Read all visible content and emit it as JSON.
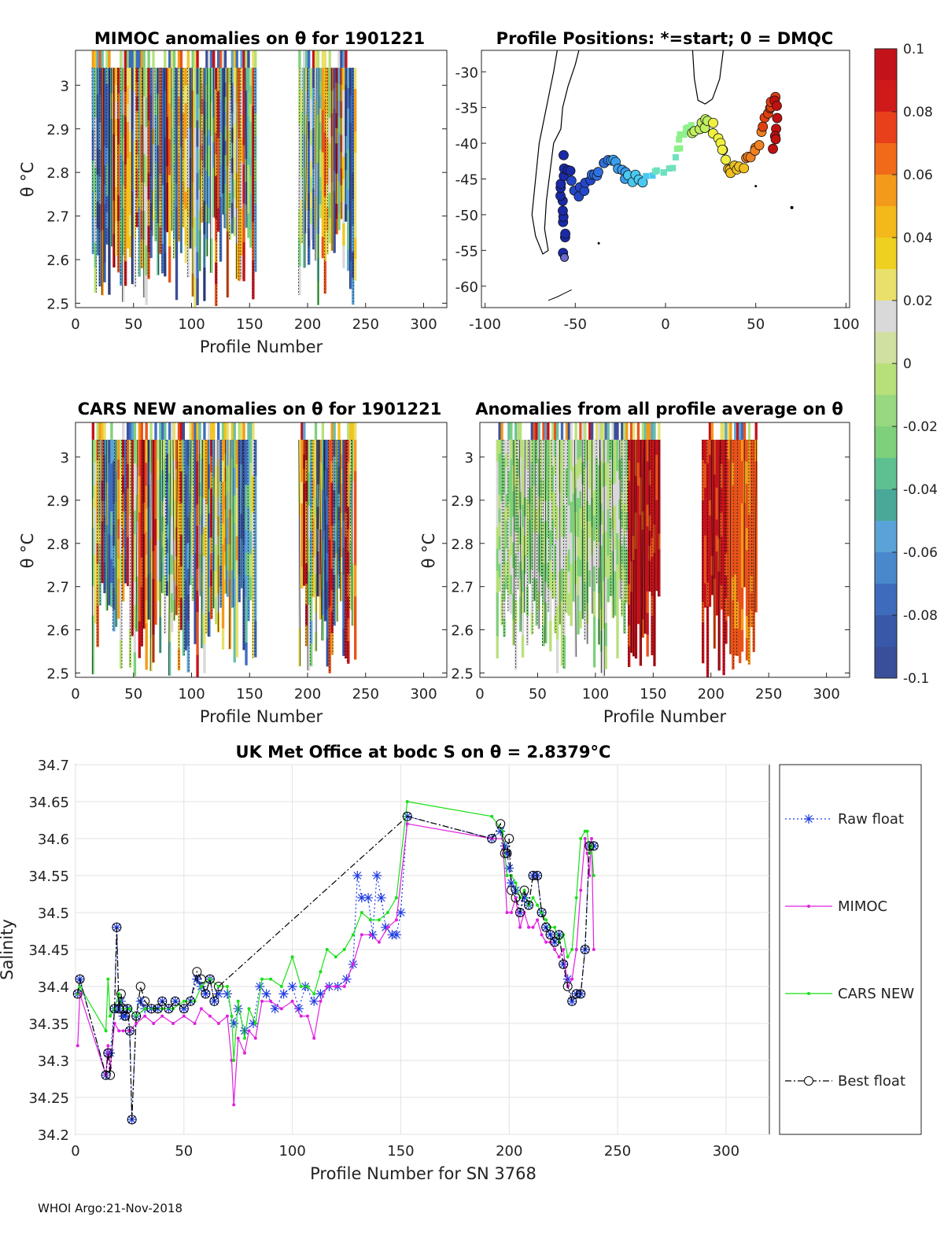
{
  "colors": {
    "scale": [
      "#3a4f9a",
      "#3f6bbd",
      "#5aa3d8",
      "#67c0a3",
      "#7ed07b",
      "#b8e07a",
      "#d9d9d9",
      "#e8e06a",
      "#f3c320",
      "#f39a1a",
      "#e8531a",
      "#c4121b"
    ],
    "raw": "#1f3ce0",
    "mimoc": "#e020e0",
    "cars": "#18e018",
    "best": "#000000",
    "land": "#000000"
  },
  "panels": {
    "mimoc": {
      "title": "MIMOC anomalies on θ  for 1901221",
      "ylabel": "θ °C",
      "xlabel": "Profile Number",
      "xticks": [
        "0",
        "50",
        "100",
        "150",
        "200",
        "250",
        "300"
      ],
      "yticks": [
        "3",
        "2.9",
        "2.8",
        "2.7",
        "2.6",
        "2.5"
      ]
    },
    "positions": {
      "title": "Profile Positions: *=start; 0 = DMQC",
      "xticks": [
        "-100",
        "-50",
        "0",
        "50",
        "100"
      ],
      "yticks": [
        "-30",
        "-35",
        "-40",
        "-45",
        "-50",
        "-55",
        "-60"
      ]
    },
    "cars": {
      "title": "CARS NEW anomalies on θ for 1901221",
      "ylabel": "θ °C",
      "xlabel": "Profile Number",
      "xticks": [
        "0",
        "50",
        "100",
        "150",
        "200",
        "250",
        "300"
      ],
      "yticks": [
        "3",
        "2.9",
        "2.8",
        "2.7",
        "2.6",
        "2.5"
      ]
    },
    "avg": {
      "title": "Anomalies from all profile average on θ",
      "ylabel": "θ °C",
      "xlabel": "Profile Number",
      "xticks": [
        "0",
        "50",
        "100",
        "150",
        "200",
        "250",
        "300"
      ],
      "yticks": [
        "3",
        "2.9",
        "2.8",
        "2.7",
        "2.6",
        "2.5"
      ]
    }
  },
  "colorbar": {
    "ticks": [
      "0.1",
      "0.08",
      "0.06",
      "0.04",
      "0.02",
      "0",
      "-0.02",
      "-0.04",
      "-0.06",
      "-0.08",
      "-0.1"
    ],
    "range": [
      -0.1,
      0.1
    ]
  },
  "chart_data": {
    "type": "line",
    "title": "UK Met Office at bodc S on θ = 2.8379°C",
    "xlabel": "Profile Number for SN 3768",
    "ylabel": "Salinity",
    "xlim": [
      0,
      320
    ],
    "ylim": [
      34.2,
      34.7
    ],
    "xticks": [
      "0",
      "50",
      "100",
      "150",
      "200",
      "250",
      "300"
    ],
    "yticks": [
      "34.7",
      "34.65",
      "34.6",
      "34.55",
      "34.5",
      "34.45",
      "34.4",
      "34.35",
      "34.3",
      "34.25",
      "34.2"
    ],
    "legend": [
      "Raw float",
      "MIMOC",
      "CARS NEW",
      "Best float"
    ],
    "series": [
      {
        "name": "Raw float",
        "x": [
          1,
          2,
          14,
          15,
          16,
          18,
          19,
          20,
          21,
          22,
          23,
          24,
          25,
          26,
          28,
          30,
          32,
          35,
          38,
          40,
          43,
          46,
          50,
          53,
          56,
          58,
          60,
          62,
          64,
          66,
          70,
          73,
          75,
          78,
          82,
          85,
          88,
          92,
          96,
          100,
          103,
          106,
          110,
          113,
          117,
          121,
          125,
          128,
          130,
          132,
          135,
          137,
          139,
          141,
          143,
          146,
          148,
          150,
          153,
          192,
          196,
          198,
          199,
          200,
          201,
          203,
          205,
          207,
          209,
          211,
          213,
          215,
          217,
          219,
          221,
          223,
          225,
          227,
          229,
          231,
          233,
          235,
          237,
          239
        ],
        "y": [
          34.39,
          34.41,
          34.28,
          34.31,
          34.31,
          34.37,
          34.48,
          34.37,
          34.38,
          34.36,
          34.36,
          34.37,
          34.34,
          34.22,
          34.36,
          34.38,
          34.37,
          34.37,
          34.37,
          34.38,
          34.37,
          34.38,
          34.37,
          34.38,
          34.41,
          34.4,
          34.39,
          34.41,
          34.38,
          34.39,
          34.39,
          34.35,
          34.37,
          34.34,
          34.35,
          34.4,
          34.39,
          34.37,
          34.39,
          34.4,
          34.37,
          34.4,
          34.38,
          34.39,
          34.4,
          34.4,
          34.41,
          34.43,
          34.55,
          34.52,
          34.52,
          34.47,
          34.55,
          34.52,
          34.48,
          34.47,
          34.47,
          34.5,
          34.63,
          34.6,
          34.61,
          34.59,
          34.58,
          34.56,
          34.54,
          34.53,
          34.5,
          34.52,
          34.51,
          34.55,
          34.55,
          34.5,
          34.48,
          34.47,
          34.46,
          34.47,
          34.43,
          34.41,
          34.38,
          34.39,
          34.39,
          34.45,
          34.59,
          34.59
        ],
        "color": "#1f3ce0"
      },
      {
        "name": "MIMOC",
        "x": [
          1,
          2,
          14,
          15,
          16,
          18,
          20,
          22,
          25,
          28,
          32,
          36,
          40,
          45,
          50,
          55,
          58,
          62,
          66,
          70,
          72,
          73,
          75,
          78,
          80,
          83,
          86,
          90,
          95,
          100,
          104,
          107,
          110,
          113,
          116,
          120,
          124,
          128,
          132,
          136,
          140,
          144,
          148,
          153,
          192,
          197,
          199,
          201,
          203,
          205,
          207,
          209,
          211,
          213,
          215,
          217,
          219,
          221,
          223,
          225,
          227,
          229,
          231,
          233,
          235,
          236,
          237,
          238,
          239
        ],
        "y": [
          34.32,
          34.39,
          34.28,
          34.32,
          34.29,
          34.35,
          34.34,
          34.34,
          34.34,
          34.35,
          34.36,
          34.35,
          34.36,
          34.35,
          34.36,
          34.35,
          34.37,
          34.36,
          34.35,
          34.36,
          34.3,
          34.24,
          34.33,
          34.31,
          34.34,
          34.33,
          34.38,
          34.38,
          34.37,
          34.38,
          34.36,
          34.36,
          34.33,
          34.38,
          34.4,
          34.4,
          34.4,
          34.43,
          34.47,
          34.47,
          34.46,
          34.48,
          34.49,
          34.62,
          34.6,
          34.6,
          34.5,
          34.5,
          34.52,
          34.48,
          34.5,
          34.48,
          34.48,
          34.49,
          34.47,
          34.46,
          34.46,
          34.45,
          34.44,
          34.45,
          34.4,
          34.41,
          34.45,
          34.53,
          34.6,
          34.58,
          34.55,
          34.6,
          34.45
        ],
        "color": "#e020e0"
      },
      {
        "name": "CARS NEW",
        "x": [
          1,
          2,
          14,
          15,
          16,
          18,
          20,
          22,
          25,
          28,
          32,
          36,
          40,
          45,
          50,
          55,
          58,
          62,
          66,
          70,
          72,
          73,
          75,
          78,
          80,
          83,
          86,
          90,
          95,
          100,
          104,
          107,
          110,
          113,
          116,
          120,
          124,
          128,
          132,
          136,
          140,
          144,
          148,
          153,
          192,
          197,
          199,
          201,
          203,
          205,
          207,
          209,
          211,
          213,
          215,
          217,
          219,
          221,
          223,
          225,
          227,
          229,
          231,
          233,
          235,
          236,
          237,
          238,
          239
        ],
        "y": [
          34.39,
          34.4,
          34.34,
          34.41,
          34.36,
          34.37,
          34.39,
          34.37,
          34.37,
          34.36,
          34.37,
          34.37,
          34.37,
          34.37,
          34.38,
          34.38,
          34.4,
          34.41,
          34.4,
          34.4,
          34.36,
          34.3,
          34.38,
          34.33,
          34.37,
          34.35,
          34.41,
          34.41,
          34.4,
          34.44,
          34.4,
          34.4,
          34.39,
          34.42,
          34.45,
          34.44,
          34.45,
          34.47,
          34.5,
          34.49,
          34.49,
          34.5,
          34.52,
          34.65,
          34.63,
          34.61,
          34.55,
          34.55,
          34.54,
          34.52,
          34.53,
          34.51,
          34.52,
          34.51,
          34.5,
          34.49,
          34.48,
          34.48,
          34.46,
          34.47,
          34.44,
          34.45,
          34.52,
          34.6,
          34.61,
          34.61,
          34.58,
          34.59,
          34.55
        ],
        "color": "#18e018"
      },
      {
        "name": "Best float",
        "x": [
          1,
          2,
          14,
          15,
          16,
          18,
          19,
          20,
          21,
          22,
          23,
          24,
          25,
          26,
          28,
          30,
          32,
          35,
          38,
          40,
          43,
          46,
          50,
          53,
          56,
          58,
          60,
          62,
          64,
          66,
          153,
          192,
          196,
          198,
          199,
          200,
          201,
          203,
          205,
          207,
          209,
          211,
          213,
          215,
          217,
          219,
          221,
          223,
          225,
          227,
          229,
          231,
          233,
          235,
          237,
          239
        ],
        "y": [
          34.39,
          34.41,
          34.28,
          34.31,
          34.28,
          34.37,
          34.48,
          34.37,
          34.39,
          34.37,
          34.36,
          34.37,
          34.34,
          34.22,
          34.36,
          34.4,
          34.38,
          34.37,
          34.37,
          34.38,
          34.37,
          34.38,
          34.37,
          34.38,
          34.42,
          34.41,
          34.39,
          34.41,
          34.38,
          34.4,
          34.63,
          34.6,
          34.62,
          34.58,
          34.58,
          34.6,
          34.53,
          34.52,
          34.5,
          34.53,
          34.51,
          34.55,
          34.55,
          34.5,
          34.48,
          34.47,
          34.46,
          34.47,
          34.43,
          34.4,
          34.38,
          34.39,
          34.39,
          34.45,
          34.59,
          34.59
        ],
        "color": "#000000"
      }
    ]
  },
  "footer": "WHOI Argo:21-Nov-2018"
}
